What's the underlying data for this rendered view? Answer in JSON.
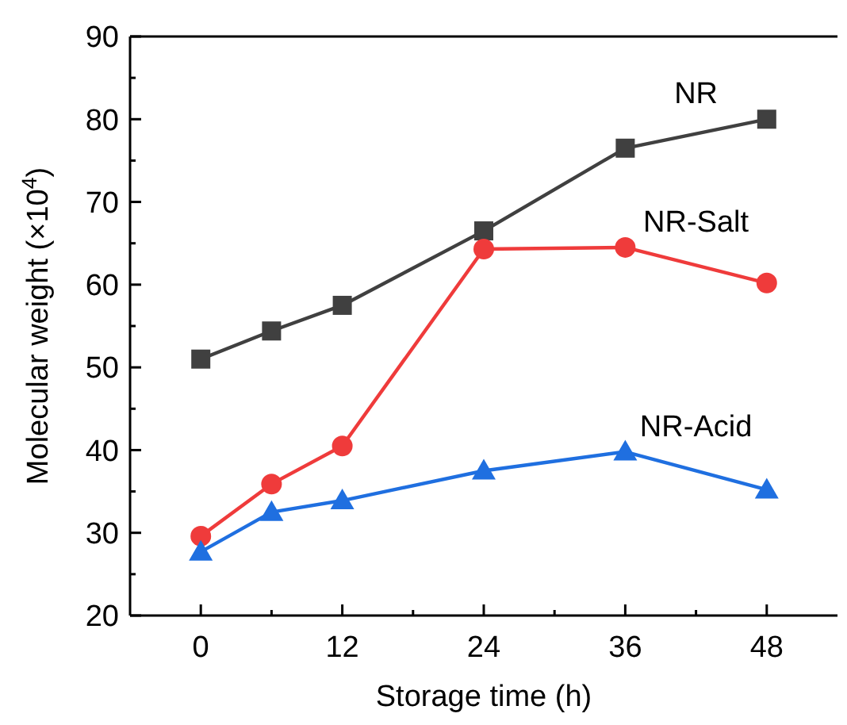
{
  "chart_data": {
    "type": "line",
    "xlabel": "Storage time (h)",
    "ylabel": "Molecular weight (×10$^{4}$)",
    "xlim": [
      -6,
      54
    ],
    "xticks": [
      0,
      {
        "value": 6,
        "label": null
      },
      12,
      {
        "value": 18,
        "label": null
      },
      24,
      {
        "value": 30,
        "label": null
      },
      36,
      {
        "value": 42,
        "label": null
      },
      48
    ],
    "ylim": [
      20,
      90
    ],
    "yticks": [
      20,
      {
        "value": 25,
        "label": null
      },
      30,
      {
        "value": 35,
        "label": null
      },
      40,
      {
        "value": 45,
        "label": null
      },
      50,
      {
        "value": 55,
        "label": null
      },
      60,
      {
        "value": 65,
        "label": null
      },
      70,
      {
        "value": 75,
        "label": null
      },
      80,
      {
        "value": 85,
        "label": null
      },
      90
    ],
    "x": [
      0,
      6,
      12,
      24,
      36,
      48
    ],
    "grid": false,
    "line_style": "solid",
    "series": [
      {
        "name": "NR",
        "color": "#404040",
        "marker": "square",
        "values": [
          51.0,
          54.4,
          57.5,
          66.5,
          76.5,
          80.0
        ]
      },
      {
        "name": "NR-Salt",
        "color": "#ef3b3b",
        "marker": "circle",
        "values": [
          29.6,
          35.9,
          40.5,
          64.3,
          64.5,
          60.2
        ]
      },
      {
        "name": "NR-Acid",
        "color": "#1f6fe0",
        "marker": "triangle",
        "values": [
          27.7,
          32.5,
          33.9,
          37.5,
          39.8,
          35.2
        ]
      }
    ]
  }
}
